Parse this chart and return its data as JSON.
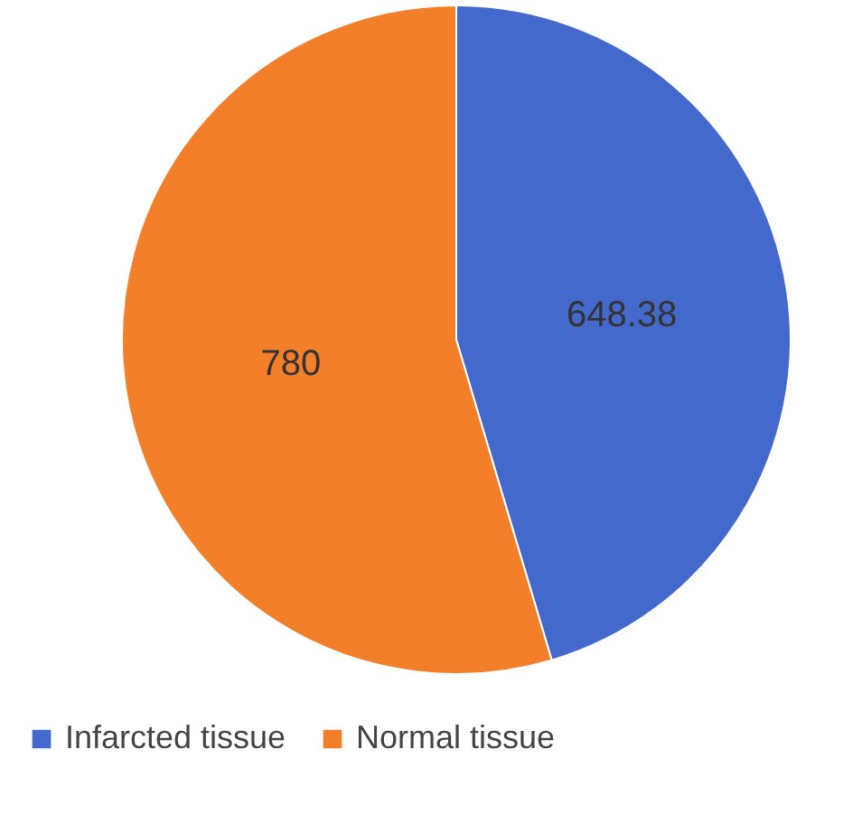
{
  "chart_data": {
    "type": "pie",
    "categories": [
      "Infarcted tissue",
      "Normal tissue"
    ],
    "values": [
      648.38,
      780
    ],
    "colors": [
      "#4369cc",
      "#f47f2b"
    ],
    "data_labels": true,
    "legend": "bottom"
  }
}
